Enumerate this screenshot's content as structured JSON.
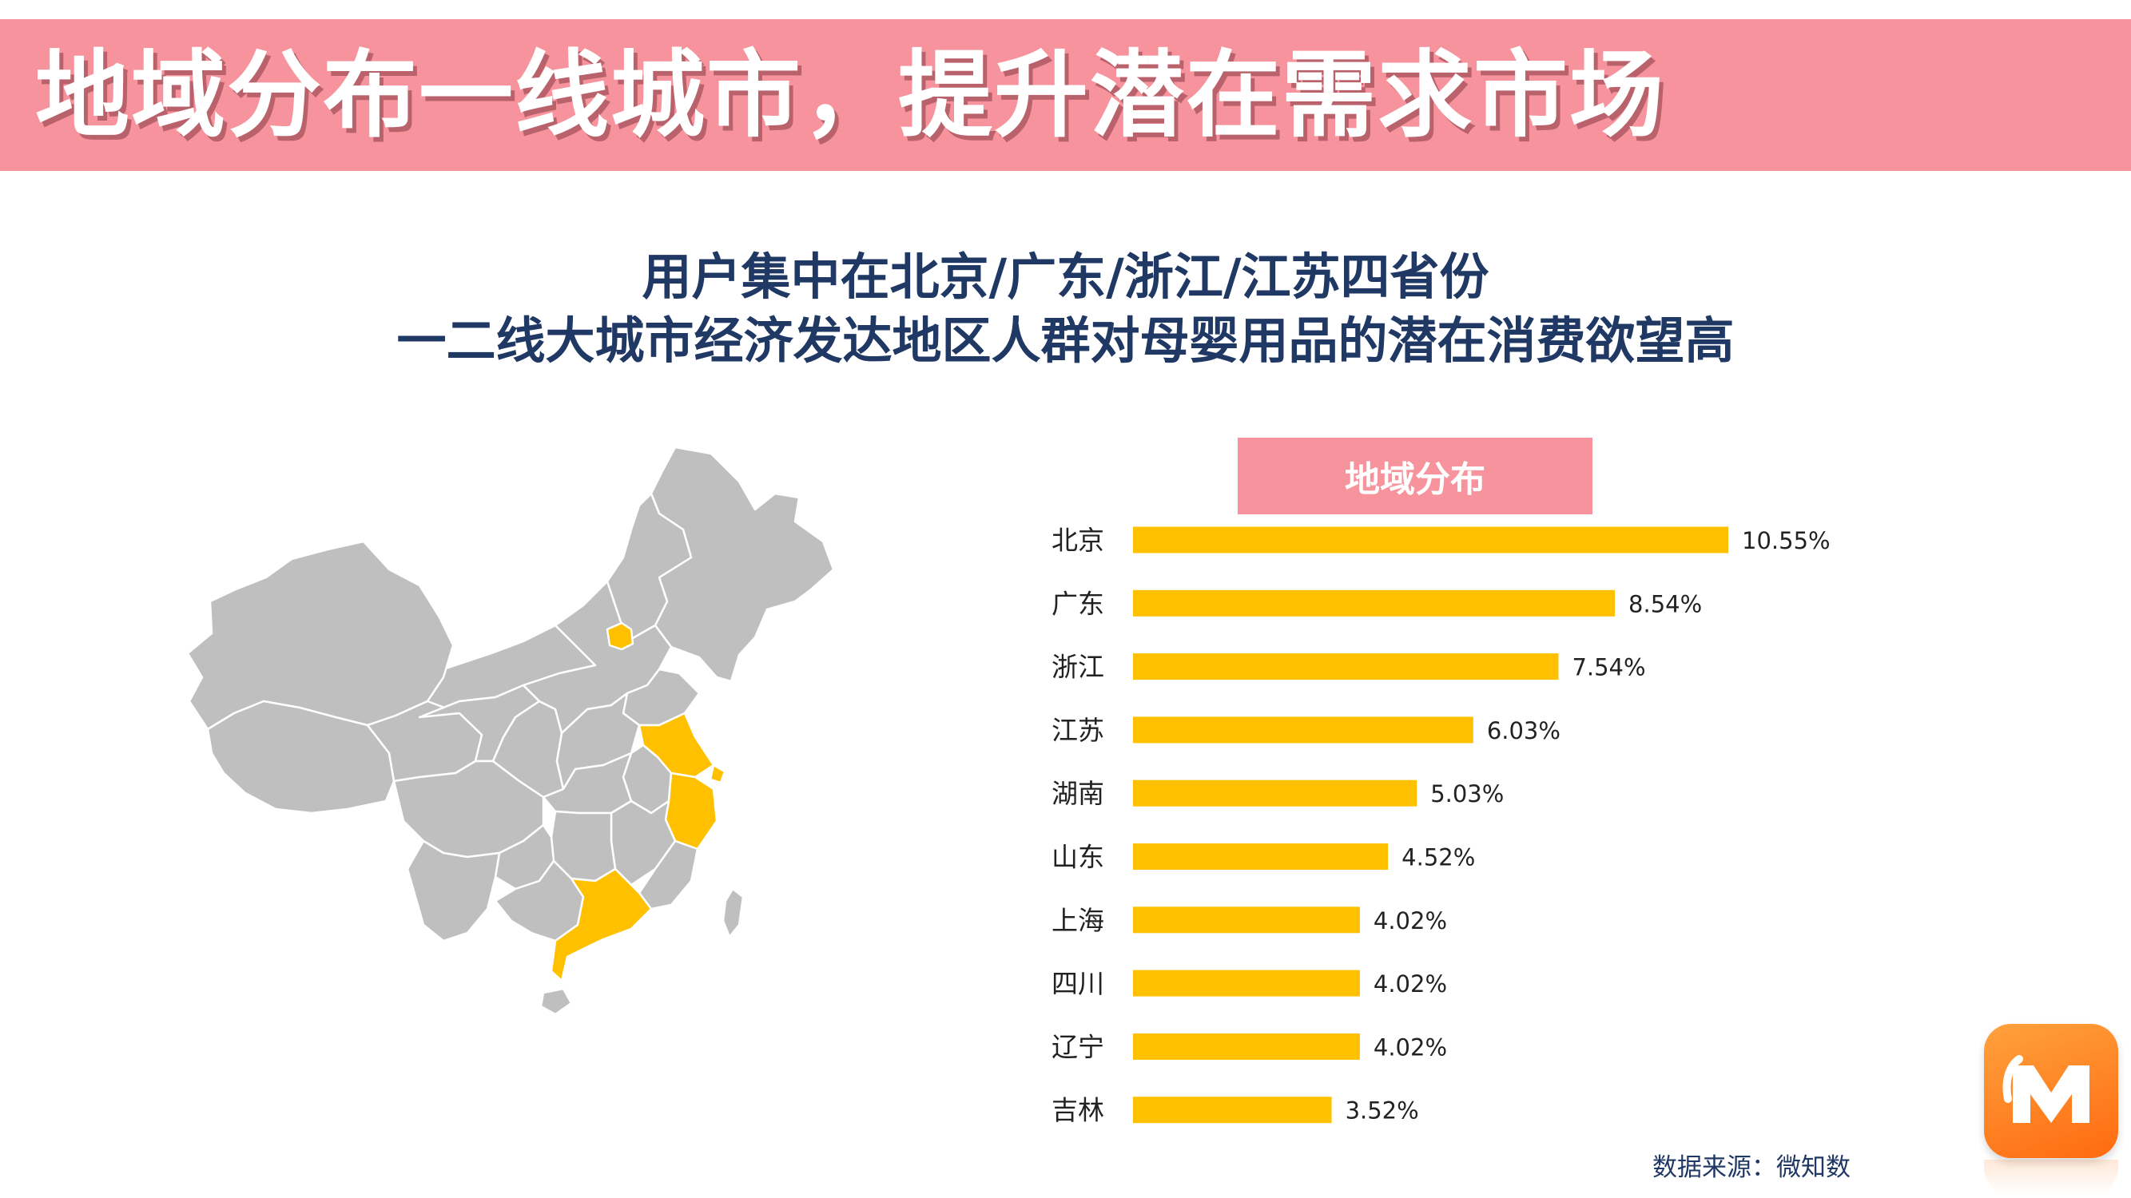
{
  "slide": {
    "title": "地域分布一线城市，提升潜在需求市场",
    "headline_1": "用户集中在北京/广东/浙江/江苏四省份",
    "headline_2": "一二线大城市经济发达地区人群对母婴用品的潜在消费欲望高",
    "source": "数据来源：微知数"
  },
  "colors": {
    "banner": "#f7939c",
    "headline": "#1f3864",
    "bar": "#ffc000",
    "map_base": "#bfbfbf",
    "map_highlight": "#ffc000",
    "map_border": "#ffffff"
  },
  "map": {
    "highlighted_regions": [
      "北京",
      "江苏",
      "上海",
      "浙江",
      "广东"
    ]
  },
  "logo": {
    "icon": "mango-tv-logo-icon"
  },
  "chart_data": {
    "type": "bar",
    "orientation": "horizontal",
    "title": "地域分布",
    "categories": [
      "北京",
      "广东",
      "浙江",
      "江苏",
      "湖南",
      "山东",
      "上海",
      "四川",
      "辽宁",
      "吉林"
    ],
    "values": [
      10.55,
      8.54,
      7.54,
      6.03,
      5.03,
      4.52,
      4.02,
      4.02,
      4.02,
      3.52
    ],
    "labels": [
      "10.55%",
      "8.54%",
      "7.54%",
      "6.03%",
      "5.03%",
      "4.52%",
      "4.02%",
      "4.02%",
      "4.02%",
      "3.52%"
    ],
    "unit": "%",
    "xlim": [
      0,
      10.55
    ],
    "grid": false,
    "legend": "none"
  }
}
